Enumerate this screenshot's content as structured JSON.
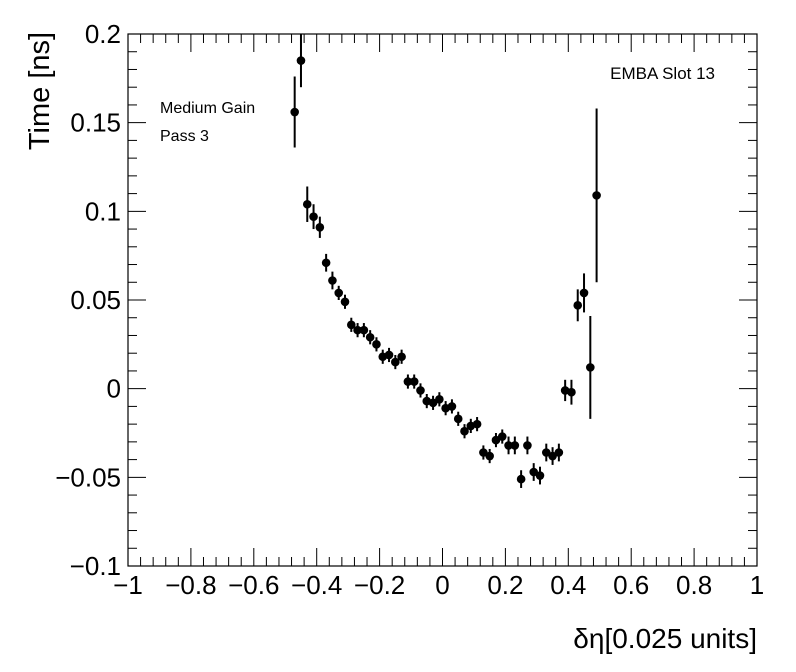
{
  "chart_data": {
    "type": "scatter",
    "title": "",
    "xlabel": "δη[0.025 units]",
    "ylabel": "Time [ns]",
    "xlim": [
      -1,
      1
    ],
    "ylim": [
      -0.1,
      0.2
    ],
    "grid": false,
    "xticks": [
      "−1",
      "−0.8",
      "−0.6",
      "−0.4",
      "−0.2",
      "0",
      "0.2",
      "0.4",
      "0.6",
      "0.8",
      "1"
    ],
    "xtick_values": [
      -1,
      -0.8,
      -0.6,
      -0.4,
      -0.2,
      0,
      0.2,
      0.4,
      0.6,
      0.8,
      1
    ],
    "yticks": [
      "−0.1",
      "−0.05",
      "0",
      "0.05",
      "0.1",
      "0.15",
      "0.2"
    ],
    "ytick_values": [
      -0.1,
      -0.05,
      0,
      0.05,
      0.1,
      0.15,
      0.2
    ],
    "annotations": {
      "gain": "Medium Gain",
      "pass": "Pass 3",
      "slot": "EMBA Slot 13"
    },
    "marker_color": "#000000",
    "points": [
      {
        "x": -0.47,
        "y": 0.156,
        "err": 0.02
      },
      {
        "x": -0.45,
        "y": 0.185,
        "err": 0.015
      },
      {
        "x": -0.43,
        "y": 0.104,
        "err": 0.01
      },
      {
        "x": -0.41,
        "y": 0.097,
        "err": 0.007
      },
      {
        "x": -0.39,
        "y": 0.091,
        "err": 0.006
      },
      {
        "x": -0.37,
        "y": 0.071,
        "err": 0.005
      },
      {
        "x": -0.35,
        "y": 0.061,
        "err": 0.005
      },
      {
        "x": -0.33,
        "y": 0.054,
        "err": 0.004
      },
      {
        "x": -0.31,
        "y": 0.049,
        "err": 0.004
      },
      {
        "x": -0.29,
        "y": 0.036,
        "err": 0.004
      },
      {
        "x": -0.27,
        "y": 0.033,
        "err": 0.004
      },
      {
        "x": -0.25,
        "y": 0.033,
        "err": 0.004
      },
      {
        "x": -0.23,
        "y": 0.029,
        "err": 0.004
      },
      {
        "x": -0.21,
        "y": 0.025,
        "err": 0.004
      },
      {
        "x": -0.19,
        "y": 0.018,
        "err": 0.004
      },
      {
        "x": -0.17,
        "y": 0.019,
        "err": 0.004
      },
      {
        "x": -0.15,
        "y": 0.015,
        "err": 0.004
      },
      {
        "x": -0.13,
        "y": 0.018,
        "err": 0.004
      },
      {
        "x": -0.11,
        "y": 0.004,
        "err": 0.004
      },
      {
        "x": -0.09,
        "y": 0.004,
        "err": 0.004
      },
      {
        "x": -0.07,
        "y": -0.001,
        "err": 0.004
      },
      {
        "x": -0.05,
        "y": -0.007,
        "err": 0.004
      },
      {
        "x": -0.03,
        "y": -0.008,
        "err": 0.004
      },
      {
        "x": -0.01,
        "y": -0.006,
        "err": 0.004
      },
      {
        "x": 0.01,
        "y": -0.011,
        "err": 0.004
      },
      {
        "x": 0.03,
        "y": -0.01,
        "err": 0.004
      },
      {
        "x": 0.05,
        "y": -0.017,
        "err": 0.004
      },
      {
        "x": 0.07,
        "y": -0.024,
        "err": 0.004
      },
      {
        "x": 0.09,
        "y": -0.021,
        "err": 0.004
      },
      {
        "x": 0.11,
        "y": -0.02,
        "err": 0.004
      },
      {
        "x": 0.13,
        "y": -0.036,
        "err": 0.004
      },
      {
        "x": 0.15,
        "y": -0.038,
        "err": 0.004
      },
      {
        "x": 0.17,
        "y": -0.029,
        "err": 0.004
      },
      {
        "x": 0.19,
        "y": -0.027,
        "err": 0.004
      },
      {
        "x": 0.21,
        "y": -0.032,
        "err": 0.005
      },
      {
        "x": 0.23,
        "y": -0.032,
        "err": 0.005
      },
      {
        "x": 0.25,
        "y": -0.051,
        "err": 0.005
      },
      {
        "x": 0.27,
        "y": -0.032,
        "err": 0.005
      },
      {
        "x": 0.29,
        "y": -0.047,
        "err": 0.005
      },
      {
        "x": 0.31,
        "y": -0.049,
        "err": 0.005
      },
      {
        "x": 0.33,
        "y": -0.036,
        "err": 0.005
      },
      {
        "x": 0.35,
        "y": -0.038,
        "err": 0.005
      },
      {
        "x": 0.37,
        "y": -0.036,
        "err": 0.005
      },
      {
        "x": 0.39,
        "y": -0.001,
        "err": 0.006
      },
      {
        "x": 0.41,
        "y": -0.002,
        "err": 0.007
      },
      {
        "x": 0.43,
        "y": 0.047,
        "err": 0.009
      },
      {
        "x": 0.45,
        "y": 0.054,
        "err": 0.011
      },
      {
        "x": 0.47,
        "y": 0.012,
        "err": 0.029
      },
      {
        "x": 0.49,
        "y": 0.109,
        "err": 0.049
      }
    ]
  }
}
